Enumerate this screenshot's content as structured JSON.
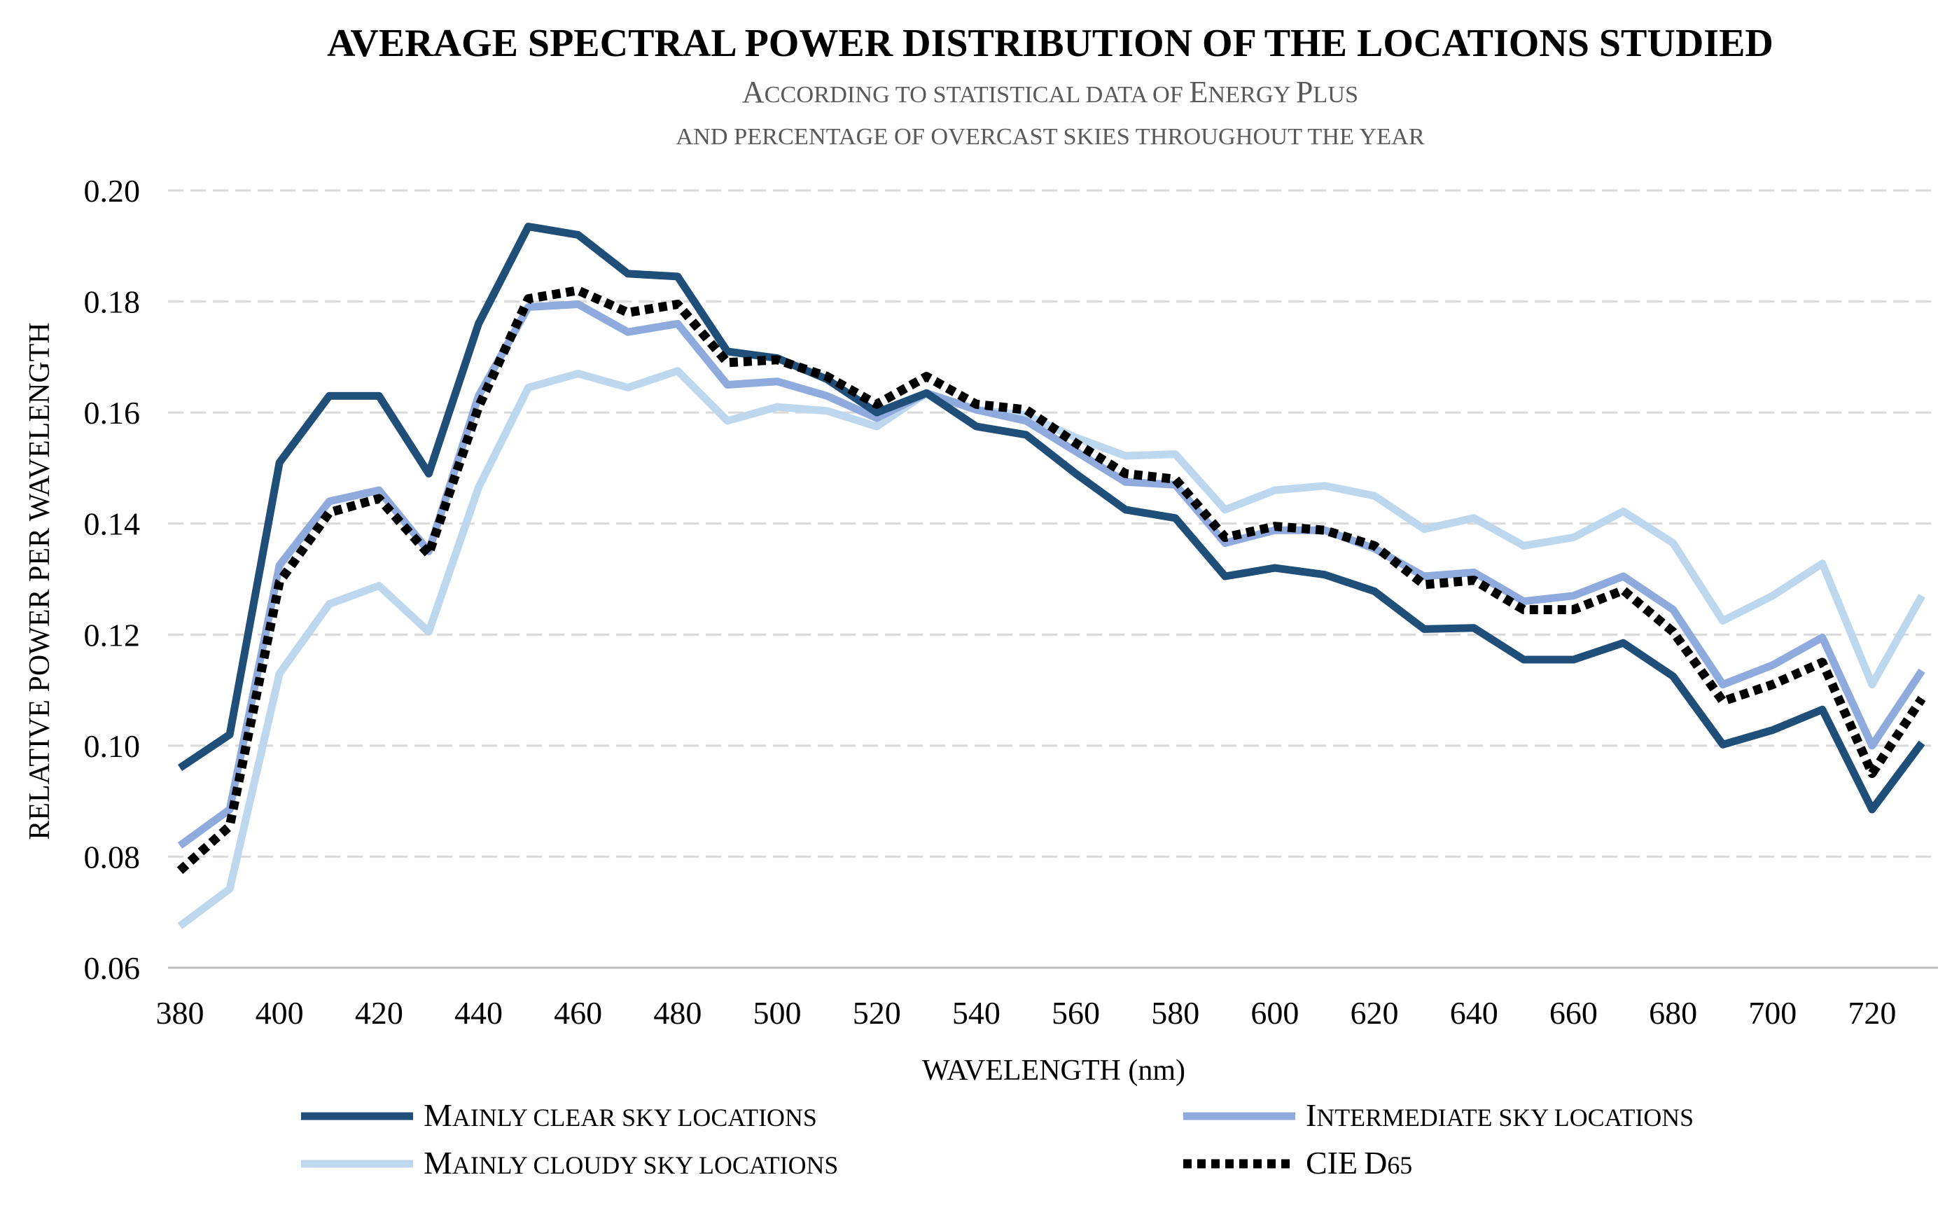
{
  "chart_data": {
    "type": "line",
    "title": "AVERAGE SPECTRAL POWER DISTRIBUTION OF THE LOCATIONS STUDIED",
    "subtitle_lines": [
      "According to statistical data of Energy Plus",
      "and percentage of overcast skies throughout the year"
    ],
    "xlabel": "WAVELENGTH (nm)",
    "ylabel": "RELATIVE POWER PER WAVELENGTH",
    "ylim": [
      0.06,
      0.2
    ],
    "yticks": [
      "0.20",
      "0.18",
      "0.16",
      "0.14",
      "0.12",
      "0.10",
      "0.08",
      "0.06"
    ],
    "x": [
      380,
      390,
      400,
      410,
      420,
      430,
      440,
      450,
      460,
      470,
      480,
      490,
      500,
      510,
      520,
      530,
      540,
      550,
      560,
      570,
      580,
      590,
      600,
      610,
      620,
      630,
      640,
      650,
      660,
      670,
      680,
      690,
      700,
      710,
      720,
      730
    ],
    "xticks": [
      "380",
      "400",
      "420",
      "440",
      "460",
      "480",
      "500",
      "520",
      "540",
      "560",
      "580",
      "600",
      "620",
      "640",
      "660",
      "680",
      "700",
      "720"
    ],
    "grid": true,
    "legend_position": "bottom",
    "series": [
      {
        "name": "Mainly clear sky locations",
        "color": "#1f4e79",
        "dash": "solid",
        "values": [
          0.096,
          0.102,
          0.151,
          0.163,
          0.163,
          0.149,
          0.176,
          0.1935,
          0.192,
          0.185,
          0.1845,
          0.171,
          0.1698,
          0.166,
          0.16,
          0.1635,
          0.1575,
          0.156,
          0.149,
          0.1425,
          0.141,
          0.1305,
          0.132,
          0.1308,
          0.1278,
          0.121,
          0.1212,
          0.1155,
          0.1155,
          0.1185,
          0.1125,
          0.1002,
          0.1028,
          0.1065,
          0.0885,
          0.1005
        ]
      },
      {
        "name": "Intermediate sky locations",
        "color": "#8faadc",
        "dash": "solid",
        "values": [
          0.082,
          0.0885,
          0.1325,
          0.144,
          0.146,
          0.135,
          0.163,
          0.179,
          0.1795,
          0.1745,
          0.176,
          0.165,
          0.1656,
          0.163,
          0.159,
          0.1635,
          0.1605,
          0.1585,
          0.153,
          0.1475,
          0.147,
          0.1365,
          0.1388,
          0.1388,
          0.1355,
          0.1305,
          0.1312,
          0.126,
          0.127,
          0.1305,
          0.1245,
          0.111,
          0.1145,
          0.1195,
          0.1,
          0.1135
        ]
      },
      {
        "name": "Mainly cloudy sky locations",
        "color": "#bdd7ee",
        "dash": "solid",
        "values": [
          0.0675,
          0.0742,
          0.113,
          0.1255,
          0.1288,
          0.1205,
          0.1465,
          0.1645,
          0.167,
          0.1645,
          0.1675,
          0.1585,
          0.161,
          0.1603,
          0.1575,
          0.1635,
          0.1605,
          0.1595,
          0.1555,
          0.1522,
          0.1525,
          0.1425,
          0.146,
          0.1468,
          0.145,
          0.139,
          0.141,
          0.136,
          0.1375,
          0.1422,
          0.1365,
          0.1225,
          0.127,
          0.1328,
          0.111,
          0.127
        ]
      },
      {
        "name": "CIE D65",
        "color": "#000000",
        "dash": "dotted",
        "values": [
          0.0775,
          0.0855,
          0.1295,
          0.142,
          0.1445,
          0.1345,
          0.161,
          0.1805,
          0.182,
          0.178,
          0.1795,
          0.169,
          0.1695,
          0.1665,
          0.1615,
          0.1665,
          0.1615,
          0.1605,
          0.1545,
          0.149,
          0.148,
          0.1375,
          0.1395,
          0.1388,
          0.136,
          0.129,
          0.1298,
          0.1245,
          0.1245,
          0.128,
          0.1205,
          0.108,
          0.111,
          0.115,
          0.095,
          0.1085
        ]
      }
    ]
  }
}
